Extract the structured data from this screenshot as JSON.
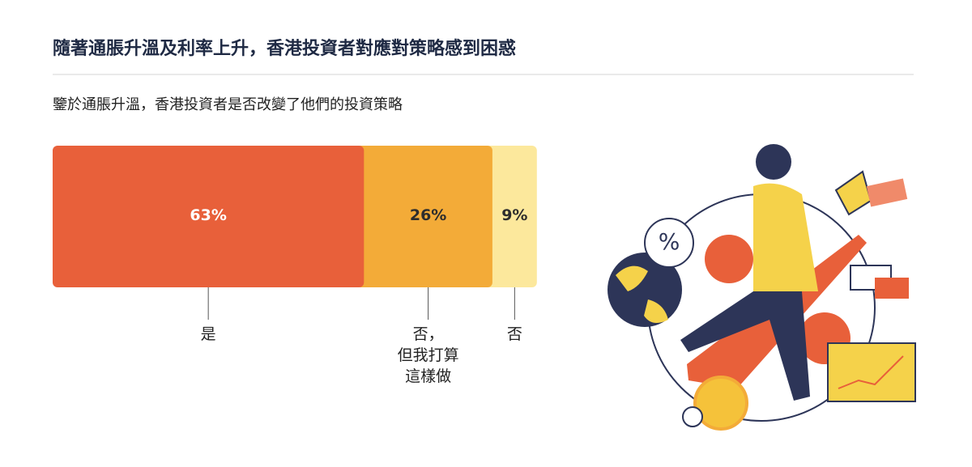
{
  "chart_data": {
    "type": "stacked_bar",
    "title": "隨著通脹升溫及利率上升，香港投資者對應對策略感到困惑",
    "subtitle": "鑒於通脹升溫，香港投資者是否改變了他們的投資策略",
    "categories": [
      "是",
      "否，\n但我打算\n這樣做",
      "否"
    ],
    "values": [
      63,
      26,
      9
    ],
    "value_labels": [
      "63%",
      "26%",
      "9%"
    ],
    "colors": [
      "#e8603a",
      "#f3ab38",
      "#fce89c"
    ]
  }
}
